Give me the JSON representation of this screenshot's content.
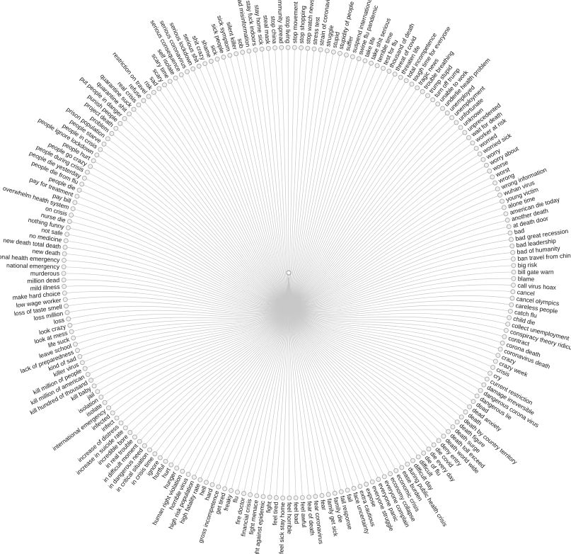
{
  "chart_data": {
    "type": "radial-dendrogram",
    "root_label": "",
    "leaves": [
      "crazy",
      "crazy week",
      "crisis",
      "cry",
      "current restriction",
      "damage irreversible",
      "dangerous corona virus",
      "dangerous lie",
      "dead",
      "dead anxiety",
      "death",
      "death by country territory",
      "death figure",
      "death surge",
      "death toll exceed",
      "death world wide",
      "deny entry",
      "die covid",
      "die every day",
      "die of flu",
      "difficult",
      "difficult day",
      "during public health crisis",
      "ease burden",
      "economic crisis",
      "economy collapse",
      "everyone complain",
      "everyone panic",
      "everyone struggle",
      "expose",
      "extra cautious",
      "face uncertainty",
      "fail",
      "fail response",
      "family die",
      "family get sick",
      "fear",
      "fear coronavirus",
      "fear of death",
      "feel awful",
      "feel bad",
      "feel horrible",
      "feel sick stay home",
      "feel tired",
      "fight",
      "fight against epidemic",
      "fight menace",
      "financial crisis",
      "fire doctor",
      "flu",
      "freaky",
      "get tired",
      "gross incompetence",
      "hard",
      "hell",
      "high fatality rate",
      "high risk population",
      "horrible virus",
      "human right violation",
      "hunger",
      "hurt",
      "hurtful",
      "ignore",
      "in crisis time",
      "in critical situation",
      "in dangerous need",
      "in difficult moment",
      "in real trouble",
      "incredible bore",
      "increase in suicide rate",
      "increase of distress",
      "infect",
      "infected",
      "international emergency",
      "isolate",
      "isolation",
      "jail",
      "kill baby",
      "kill hundred of thousand",
      "kill million of american",
      "kill million of people",
      "killer virus",
      "kind of sad",
      "lack of preparedness",
      "leave school",
      "life suck",
      "look at mess",
      "look crazy",
      "loss",
      "loss million",
      "loss of taste smell",
      "low wage worker",
      "make hard choice",
      "mild illness",
      "million dead",
      "murderous",
      "national emergency",
      "national health emergency",
      "new death",
      "new death total death",
      "no medicine",
      "not safe",
      "nothing funny",
      "nurse die",
      "on crisis",
      "overwhelm health system",
      "pay bill",
      "pay for treatment",
      "people die",
      "people die from flu",
      "people die yesterday",
      "people during crisis",
      "people go crazy",
      "people hurt",
      "people ignore lockdown",
      "people in crisis",
      "people starve",
      "prison population",
      "problem",
      "project death",
      "punish people",
      "put people in danger",
      "quarantine shit",
      "quarantine suck",
      "real crisis",
      "refuse",
      "restriction on travel",
      "risk",
      "sad",
      "scary",
      "scary time",
      "self isolate",
      "serious consequence",
      "serious coronavirus",
      "serious lockdown",
      "serious shit",
      "shit crazy",
      "shame",
      "sick",
      "sick people",
      "sick symptom",
      "silent killer",
      "sob",
      "spread misinformation",
      "stay fuck indoors",
      "stay home sick",
      "steal mask",
      "stop china",
      "stop community spread",
      "stop living",
      "stop movement",
      "stop shopping",
      "stop watch news",
      "stress test",
      "strain of coronavirus",
      "struggle",
      "stupid",
      "stupidity of people",
      "suffer",
      "suspend international flight",
      "swine flu pandemic",
      "take life",
      "take shit serious",
      "terrible time",
      "test for flu",
      "thousand of death",
      "threat of covid",
      "threaten life",
      "total incompetence",
      "tough time for everyone",
      "tragic news",
      "trouble breathing",
      "trump stupid",
      "turn off trump",
      "unable to work",
      "underlie health problem",
      "unemployed",
      "unemployment",
      "unfortunate",
      "unknown",
      "unprecedented",
      "wait for death",
      "worker at risk",
      "worried",
      "worried sick",
      "worry",
      "worry about",
      "worse",
      "worst",
      "wrong",
      "wrong information",
      "wuhan virus",
      "young victim",
      "alone time",
      "american die today",
      "another death",
      "at death door",
      "bad",
      "bad great recession",
      "bad leadership",
      "bad of humanity",
      "ban travel from china",
      "big risk",
      "bill gate warn",
      "blame",
      "call virus hoax",
      "cancel",
      "cancel olympics",
      "careless people",
      "catch flu",
      "child die",
      "collect unemployment",
      "conspiracy theory ridiculous",
      "contract",
      "corona death",
      "coronavirus death"
    ]
  }
}
